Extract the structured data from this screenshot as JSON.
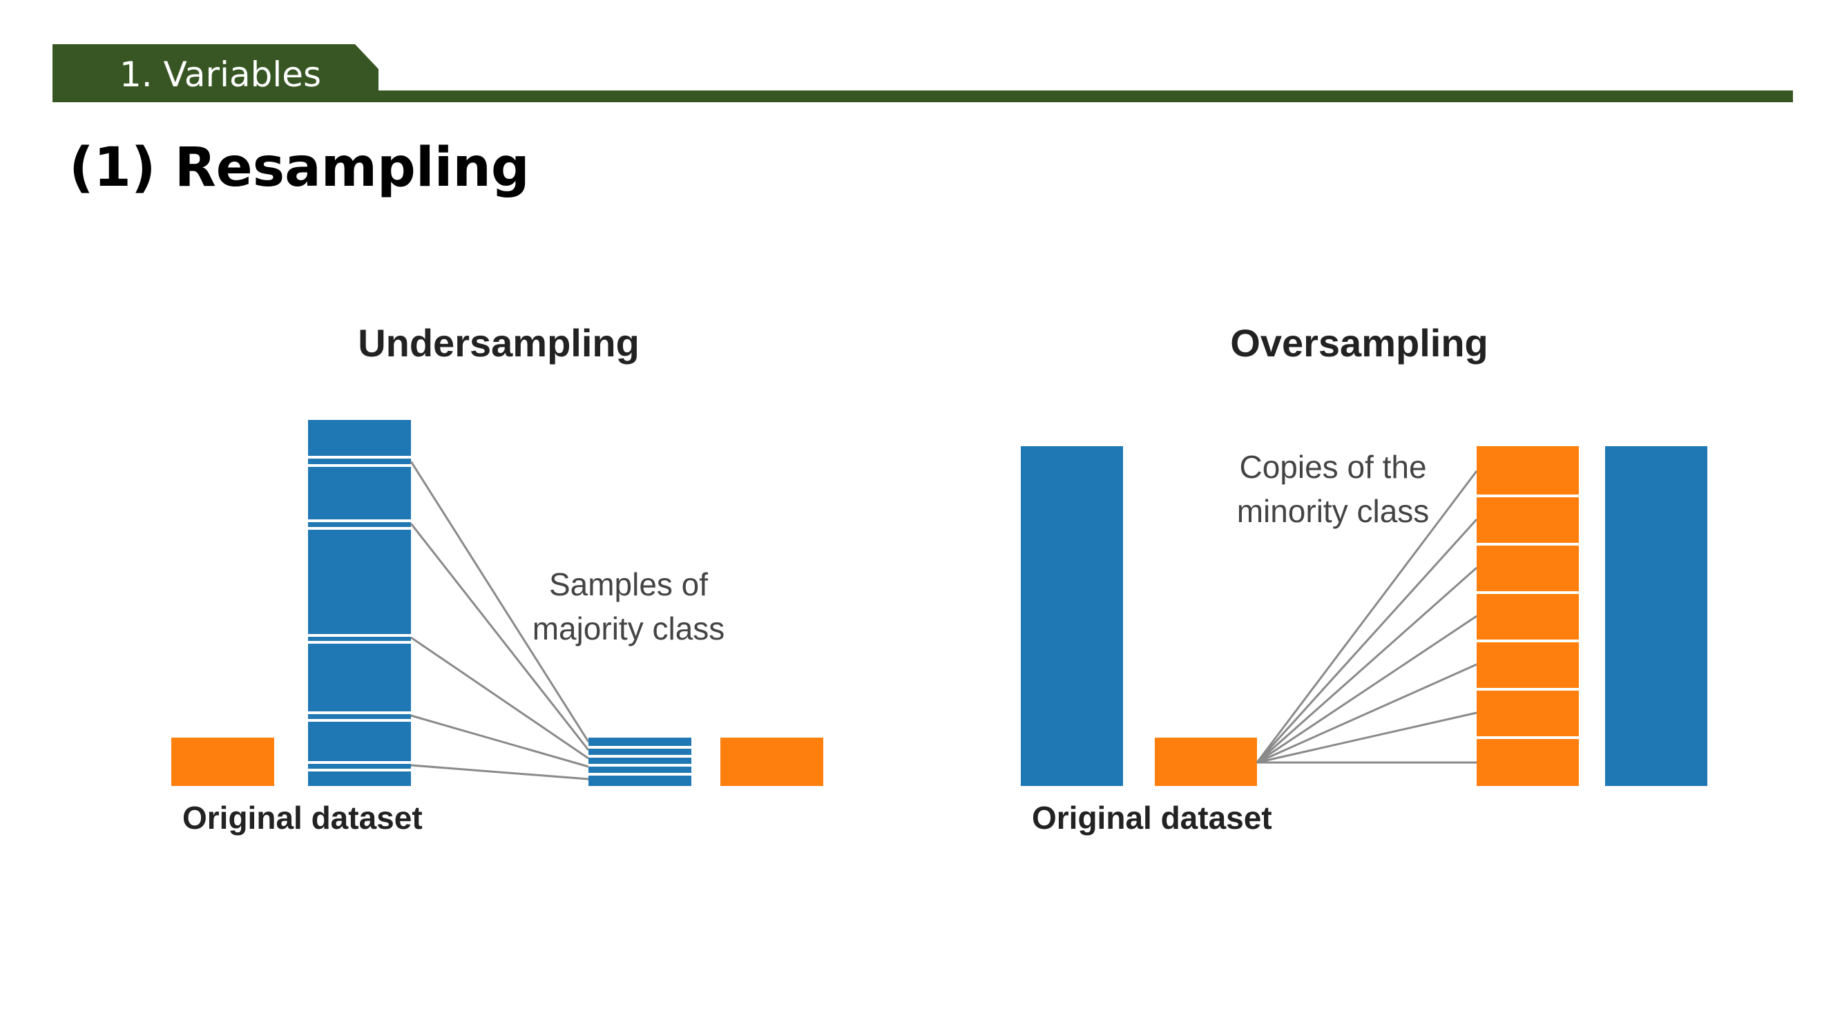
{
  "header": {
    "section_label": "1. Variables",
    "title": "(1) Resampling"
  },
  "colors": {
    "header_green": "#375623",
    "majority_blue": "#1F77B4",
    "minority_orange": "#FF7F0E",
    "connector_gray": "#8a8a8a"
  },
  "undersampling": {
    "title": "Undersampling",
    "annotation_line1": "Samples of",
    "annotation_line2": "majority class",
    "dataset_label": "Original dataset"
  },
  "oversampling": {
    "title": "Oversampling",
    "annotation_line1": "Copies of the",
    "annotation_line2": "minority class",
    "dataset_label": "Original dataset"
  }
}
